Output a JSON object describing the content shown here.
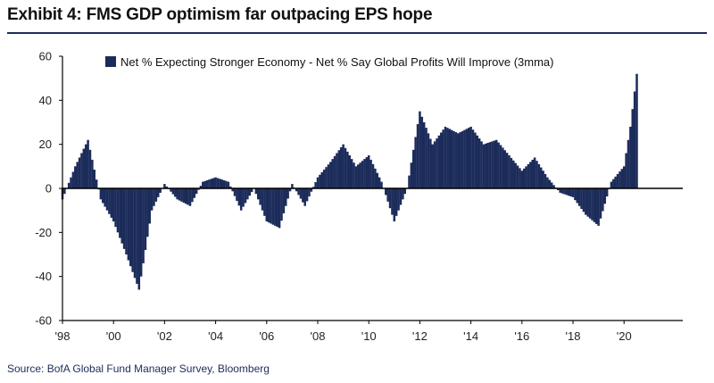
{
  "header": {
    "title": "Exhibit 4: FMS GDP optimism far outpacing EPS hope"
  },
  "footer": {
    "source": "Source: BofA Global Fund Manager Survey, Bloomberg"
  },
  "colors": {
    "bar": "#1c2c5a",
    "axis": "#000000",
    "title_rule": "#1c2c5a"
  },
  "chart_data": {
    "type": "bar",
    "title": "",
    "xlabel": "",
    "ylabel": "",
    "ylim": [
      -60,
      60
    ],
    "yticks": [
      60,
      40,
      20,
      0,
      -20,
      -40,
      -60
    ],
    "xticks": [
      "'98",
      "'00",
      "'02",
      "'04",
      "'06",
      "'08",
      "'10",
      "'12",
      "'14",
      "'16",
      "'18",
      "'20"
    ],
    "xrange": [
      1998.0,
      2022.3
    ],
    "grid": false,
    "legend": {
      "position": "top",
      "entries": [
        "Net % Expecting Stronger Economy - Net % Say Global Profits Will Improve (3mma)"
      ]
    },
    "series": [
      {
        "name": "Net % Expecting Stronger Economy - Net % Say Global Profits Will Improve (3mma)",
        "x": [
          1998.0,
          1998.5,
          1999.0,
          1999.5,
          2000.0,
          2000.5,
          2001.0,
          2001.5,
          2002.0,
          2002.5,
          2003.0,
          2003.5,
          2004.0,
          2004.5,
          2005.0,
          2005.5,
          2006.0,
          2006.5,
          2007.0,
          2007.5,
          2008.0,
          2008.5,
          2009.0,
          2009.5,
          2010.0,
          2010.5,
          2011.0,
          2011.5,
          2012.0,
          2012.5,
          2013.0,
          2013.5,
          2014.0,
          2014.5,
          2015.0,
          2015.5,
          2016.0,
          2016.5,
          2017.0,
          2017.5,
          2018.0,
          2018.5,
          2019.0,
          2019.5,
          2020.0,
          2020.25,
          2020.5
        ],
        "values": [
          -5,
          10,
          22,
          -5,
          -15,
          -30,
          -46,
          -10,
          2,
          -5,
          -8,
          3,
          5,
          3,
          -10,
          0,
          -15,
          -18,
          2,
          -8,
          5,
          12,
          20,
          10,
          15,
          3,
          -15,
          0,
          35,
          20,
          28,
          25,
          28,
          20,
          22,
          15,
          8,
          14,
          5,
          -2,
          -4,
          -12,
          -17,
          3,
          10,
          28,
          52
        ]
      }
    ]
  }
}
